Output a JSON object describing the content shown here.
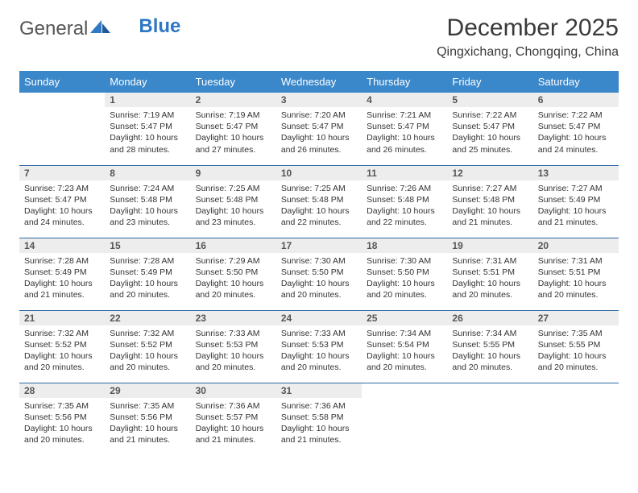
{
  "logo": {
    "text_a": "General",
    "text_b": "Blue"
  },
  "title": "December 2025",
  "location": "Qingxichang, Chongqing, China",
  "colors": {
    "header_bg": "#3a87c9",
    "header_text": "#ffffff",
    "daynum_bg": "#ededed",
    "row_border": "#2f6aa3",
    "body_text": "#333333"
  },
  "weekdays": [
    "Sunday",
    "Monday",
    "Tuesday",
    "Wednesday",
    "Thursday",
    "Friday",
    "Saturday"
  ],
  "weeks": [
    [
      {
        "empty": true
      },
      {
        "day": "1",
        "sunrise": "Sunrise: 7:19 AM",
        "sunset": "Sunset: 5:47 PM",
        "daylight": "Daylight: 10 hours and 28 minutes."
      },
      {
        "day": "2",
        "sunrise": "Sunrise: 7:19 AM",
        "sunset": "Sunset: 5:47 PM",
        "daylight": "Daylight: 10 hours and 27 minutes."
      },
      {
        "day": "3",
        "sunrise": "Sunrise: 7:20 AM",
        "sunset": "Sunset: 5:47 PM",
        "daylight": "Daylight: 10 hours and 26 minutes."
      },
      {
        "day": "4",
        "sunrise": "Sunrise: 7:21 AM",
        "sunset": "Sunset: 5:47 PM",
        "daylight": "Daylight: 10 hours and 26 minutes."
      },
      {
        "day": "5",
        "sunrise": "Sunrise: 7:22 AM",
        "sunset": "Sunset: 5:47 PM",
        "daylight": "Daylight: 10 hours and 25 minutes."
      },
      {
        "day": "6",
        "sunrise": "Sunrise: 7:22 AM",
        "sunset": "Sunset: 5:47 PM",
        "daylight": "Daylight: 10 hours and 24 minutes."
      }
    ],
    [
      {
        "day": "7",
        "sunrise": "Sunrise: 7:23 AM",
        "sunset": "Sunset: 5:47 PM",
        "daylight": "Daylight: 10 hours and 24 minutes."
      },
      {
        "day": "8",
        "sunrise": "Sunrise: 7:24 AM",
        "sunset": "Sunset: 5:48 PM",
        "daylight": "Daylight: 10 hours and 23 minutes."
      },
      {
        "day": "9",
        "sunrise": "Sunrise: 7:25 AM",
        "sunset": "Sunset: 5:48 PM",
        "daylight": "Daylight: 10 hours and 23 minutes."
      },
      {
        "day": "10",
        "sunrise": "Sunrise: 7:25 AM",
        "sunset": "Sunset: 5:48 PM",
        "daylight": "Daylight: 10 hours and 22 minutes."
      },
      {
        "day": "11",
        "sunrise": "Sunrise: 7:26 AM",
        "sunset": "Sunset: 5:48 PM",
        "daylight": "Daylight: 10 hours and 22 minutes."
      },
      {
        "day": "12",
        "sunrise": "Sunrise: 7:27 AM",
        "sunset": "Sunset: 5:48 PM",
        "daylight": "Daylight: 10 hours and 21 minutes."
      },
      {
        "day": "13",
        "sunrise": "Sunrise: 7:27 AM",
        "sunset": "Sunset: 5:49 PM",
        "daylight": "Daylight: 10 hours and 21 minutes."
      }
    ],
    [
      {
        "day": "14",
        "sunrise": "Sunrise: 7:28 AM",
        "sunset": "Sunset: 5:49 PM",
        "daylight": "Daylight: 10 hours and 21 minutes."
      },
      {
        "day": "15",
        "sunrise": "Sunrise: 7:28 AM",
        "sunset": "Sunset: 5:49 PM",
        "daylight": "Daylight: 10 hours and 20 minutes."
      },
      {
        "day": "16",
        "sunrise": "Sunrise: 7:29 AM",
        "sunset": "Sunset: 5:50 PM",
        "daylight": "Daylight: 10 hours and 20 minutes."
      },
      {
        "day": "17",
        "sunrise": "Sunrise: 7:30 AM",
        "sunset": "Sunset: 5:50 PM",
        "daylight": "Daylight: 10 hours and 20 minutes."
      },
      {
        "day": "18",
        "sunrise": "Sunrise: 7:30 AM",
        "sunset": "Sunset: 5:50 PM",
        "daylight": "Daylight: 10 hours and 20 minutes."
      },
      {
        "day": "19",
        "sunrise": "Sunrise: 7:31 AM",
        "sunset": "Sunset: 5:51 PM",
        "daylight": "Daylight: 10 hours and 20 minutes."
      },
      {
        "day": "20",
        "sunrise": "Sunrise: 7:31 AM",
        "sunset": "Sunset: 5:51 PM",
        "daylight": "Daylight: 10 hours and 20 minutes."
      }
    ],
    [
      {
        "day": "21",
        "sunrise": "Sunrise: 7:32 AM",
        "sunset": "Sunset: 5:52 PM",
        "daylight": "Daylight: 10 hours and 20 minutes."
      },
      {
        "day": "22",
        "sunrise": "Sunrise: 7:32 AM",
        "sunset": "Sunset: 5:52 PM",
        "daylight": "Daylight: 10 hours and 20 minutes."
      },
      {
        "day": "23",
        "sunrise": "Sunrise: 7:33 AM",
        "sunset": "Sunset: 5:53 PM",
        "daylight": "Daylight: 10 hours and 20 minutes."
      },
      {
        "day": "24",
        "sunrise": "Sunrise: 7:33 AM",
        "sunset": "Sunset: 5:53 PM",
        "daylight": "Daylight: 10 hours and 20 minutes."
      },
      {
        "day": "25",
        "sunrise": "Sunrise: 7:34 AM",
        "sunset": "Sunset: 5:54 PM",
        "daylight": "Daylight: 10 hours and 20 minutes."
      },
      {
        "day": "26",
        "sunrise": "Sunrise: 7:34 AM",
        "sunset": "Sunset: 5:55 PM",
        "daylight": "Daylight: 10 hours and 20 minutes."
      },
      {
        "day": "27",
        "sunrise": "Sunrise: 7:35 AM",
        "sunset": "Sunset: 5:55 PM",
        "daylight": "Daylight: 10 hours and 20 minutes."
      }
    ],
    [
      {
        "day": "28",
        "sunrise": "Sunrise: 7:35 AM",
        "sunset": "Sunset: 5:56 PM",
        "daylight": "Daylight: 10 hours and 20 minutes."
      },
      {
        "day": "29",
        "sunrise": "Sunrise: 7:35 AM",
        "sunset": "Sunset: 5:56 PM",
        "daylight": "Daylight: 10 hours and 21 minutes."
      },
      {
        "day": "30",
        "sunrise": "Sunrise: 7:36 AM",
        "sunset": "Sunset: 5:57 PM",
        "daylight": "Daylight: 10 hours and 21 minutes."
      },
      {
        "day": "31",
        "sunrise": "Sunrise: 7:36 AM",
        "sunset": "Sunset: 5:58 PM",
        "daylight": "Daylight: 10 hours and 21 minutes."
      },
      {
        "empty": true
      },
      {
        "empty": true
      },
      {
        "empty": true
      }
    ]
  ]
}
